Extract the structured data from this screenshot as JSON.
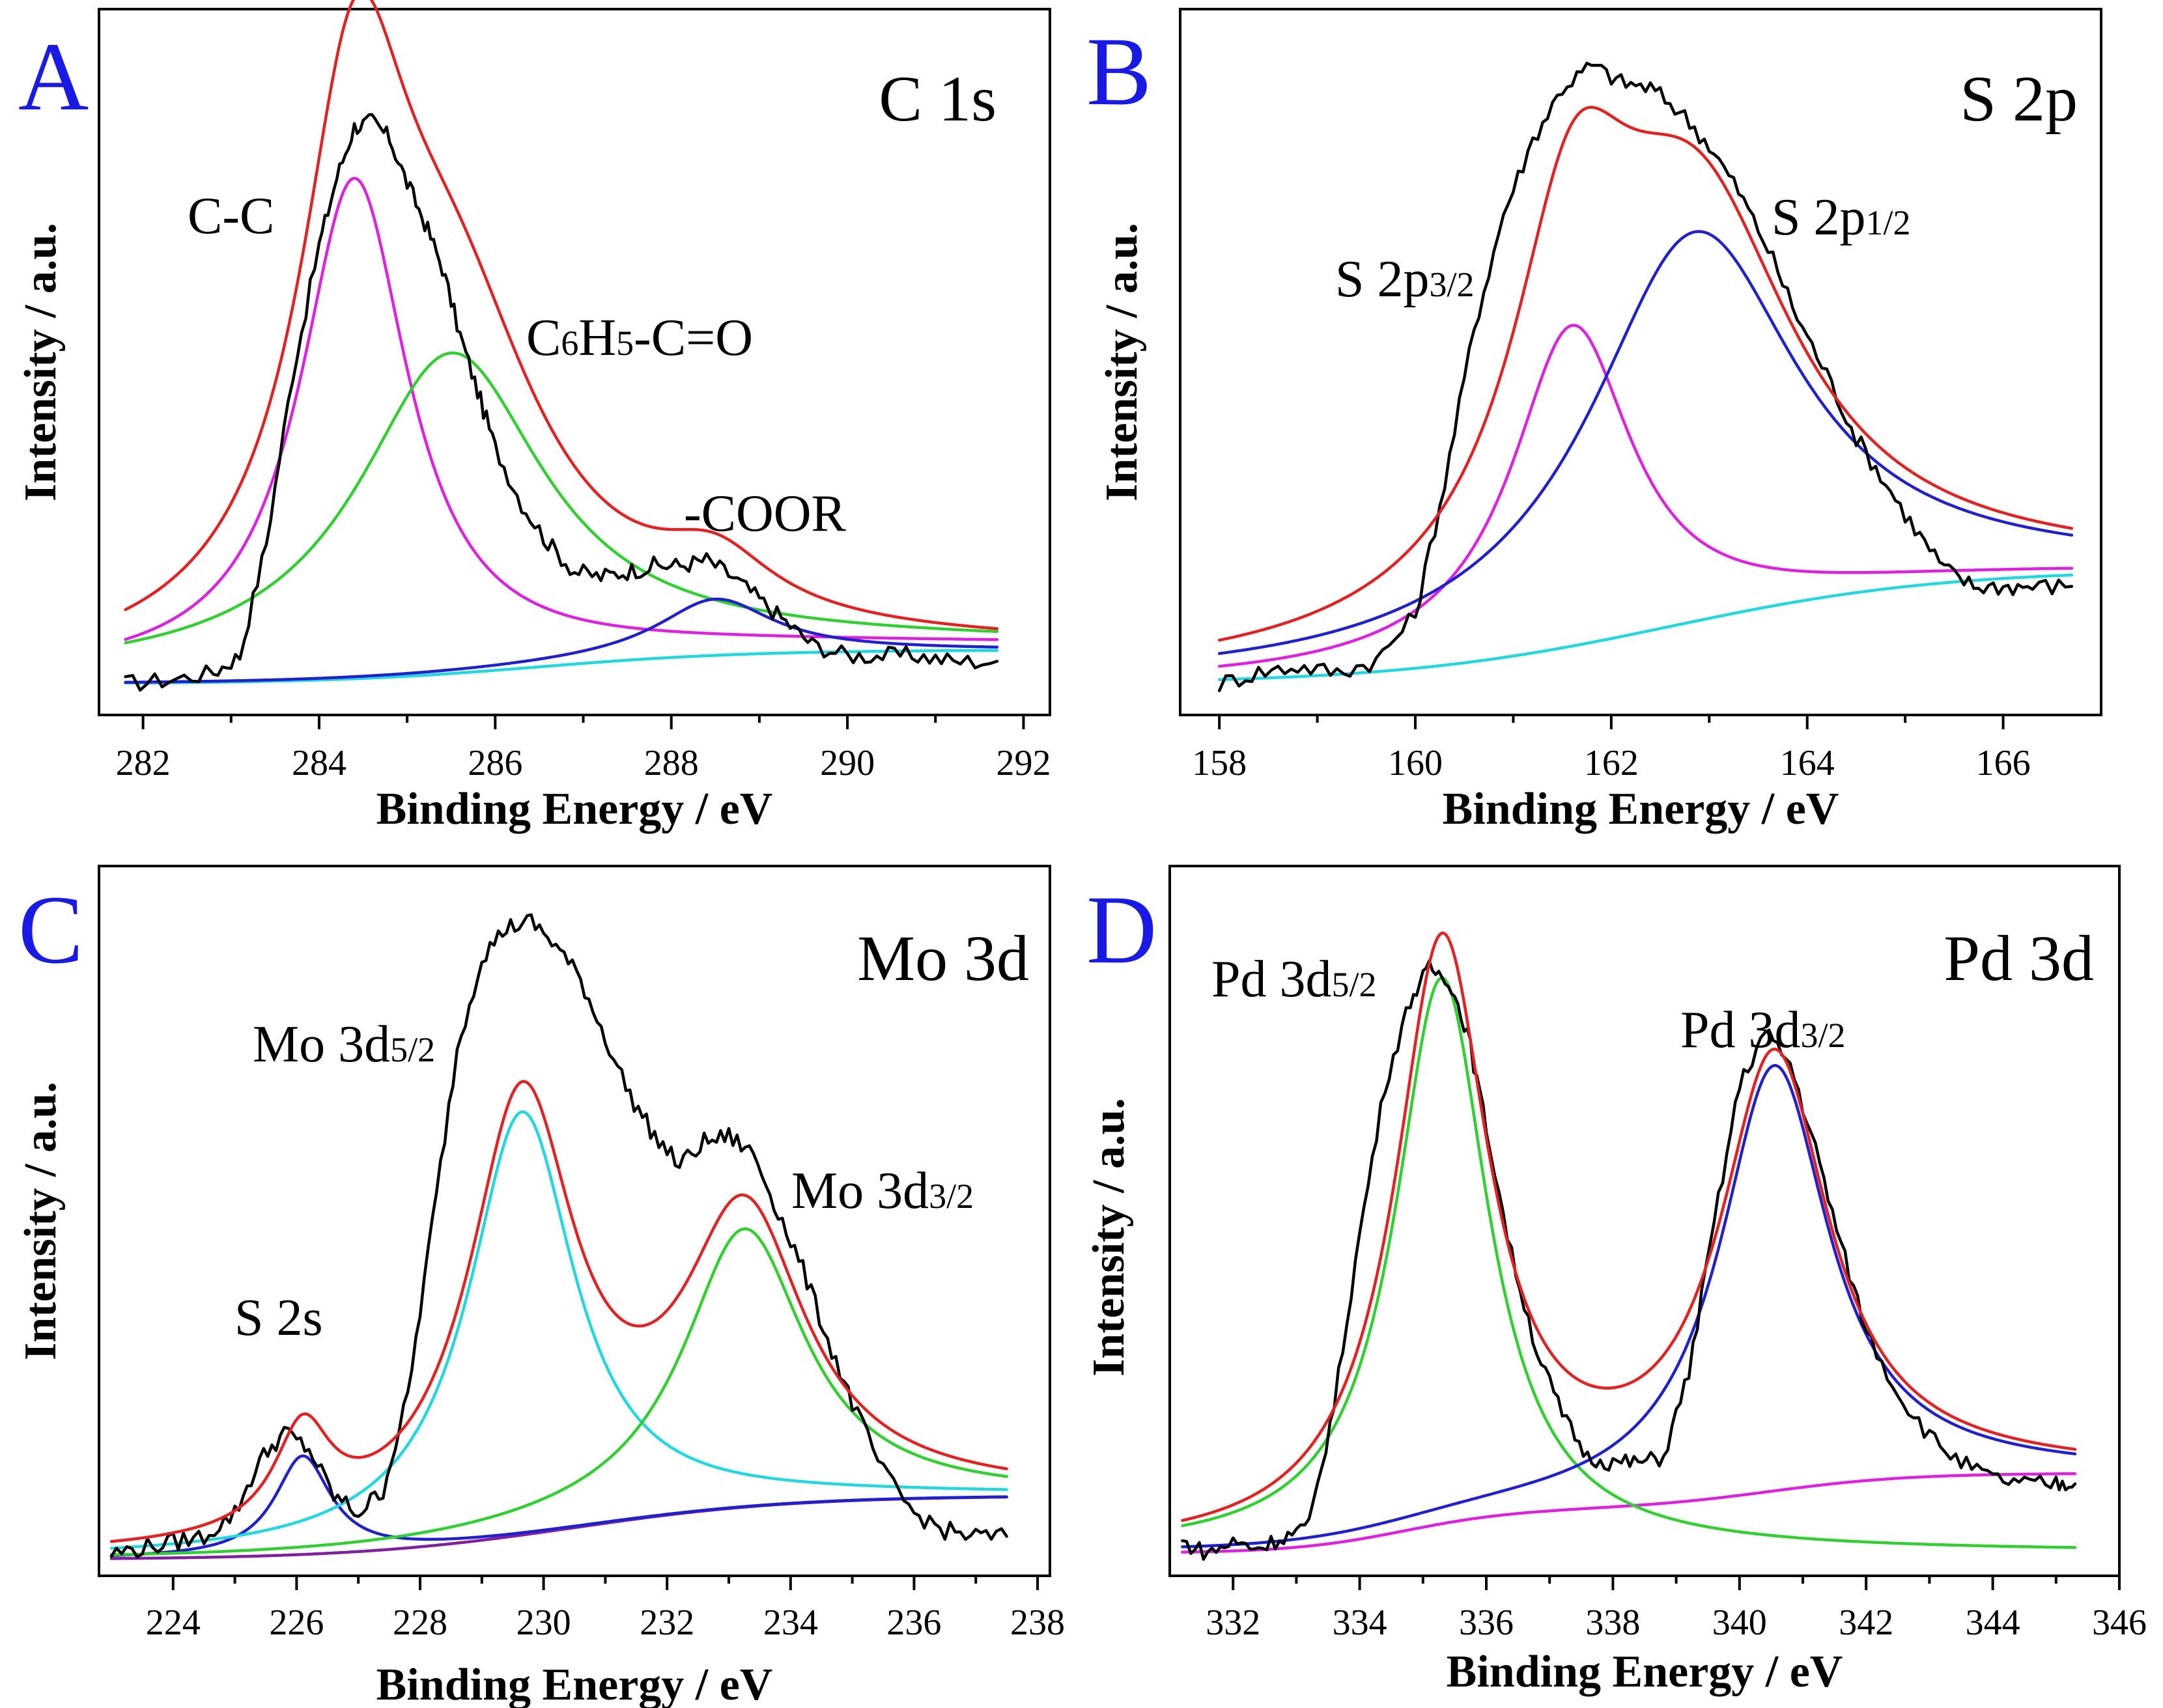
{
  "chart_data": [
    {
      "type": "line",
      "panel": "A",
      "title": "C 1s",
      "xlabel": "Binding Energy / eV",
      "ylabel": "Intensity / a.u.",
      "xlim": [
        281.5,
        292.3
      ],
      "ylim": [
        0,
        110
      ],
      "xticks": [
        282,
        284,
        286,
        288,
        290,
        292
      ],
      "annotations": [
        {
          "text": "C-C",
          "x": 283.0,
          "y": 82
        },
        {
          "text": "C6H5-C=O",
          "x": 286.3,
          "y": 58
        },
        {
          "text": "-COOR",
          "x": 287.8,
          "y": 26
        }
      ],
      "series": [
        {
          "name": "experimental",
          "color": "#000000",
          "shape": "data",
          "xs": [
            281.8,
            282.3,
            282.8,
            283.1,
            283.4,
            283.7,
            284.0,
            284.2,
            284.4,
            284.6,
            284.8,
            285.0,
            285.2,
            285.4,
            285.6,
            285.8,
            286.0,
            286.3,
            286.6,
            286.9,
            287.2,
            287.5,
            287.8,
            288.1,
            288.4,
            288.7,
            289.0,
            289.3,
            289.6,
            290.0,
            290.4,
            290.8,
            291.2,
            291.7
          ],
          "ys": [
            0,
            0.7,
            2,
            5,
            25,
            55,
            78,
            90,
            99,
            100,
            97,
            89,
            82,
            74,
            62,
            52,
            42,
            32,
            25,
            20,
            19,
            20,
            21,
            21,
            22,
            19,
            15,
            11,
            7,
            5,
            5,
            5,
            4,
            4
          ]
        },
        {
          "name": "envelope",
          "color": "#e62020",
          "shape": "sum",
          "base": "envelope"
        },
        {
          "name": "C-C",
          "color": "#e020e0",
          "shape": "peak",
          "center": 284.4,
          "height": 88,
          "width": 0.75,
          "base": "envelope"
        },
        {
          "name": "C6H5-C=O",
          "color": "#30d030",
          "shape": "peak",
          "center": 285.5,
          "height": 56,
          "width": 1.3,
          "base": "envelope"
        },
        {
          "name": "-COOR",
          "color": "#2020d0",
          "shape": "peak",
          "center": 288.5,
          "height": 10,
          "width": 0.8,
          "base": "shirley"
        },
        {
          "name": "background",
          "color": "#20d8e0",
          "shape": "background",
          "y0": 0,
          "y1": 6,
          "center": 286.5,
          "width": 1.2
        }
      ]
    },
    {
      "type": "line",
      "panel": "B",
      "title": "S 2p",
      "xlabel": "Binding Energy / eV",
      "ylabel": "Intensity / a.u.",
      "xlim": [
        157.6,
        167.0
      ],
      "ylim": [
        0,
        112
      ],
      "xticks": [
        158,
        160,
        162,
        164,
        166
      ],
      "annotations": [
        {
          "text": "S 2p3/2",
          "x": 159.6,
          "y": 71
        },
        {
          "text": "S 2p1/2",
          "x": 163.2,
          "y": 82
        }
      ],
      "series": [
        {
          "name": "experimental",
          "color": "#000000",
          "shape": "data",
          "xs": [
            158.0,
            158.4,
            158.8,
            159.2,
            159.6,
            160.0,
            160.3,
            160.6,
            160.9,
            161.2,
            161.5,
            161.8,
            162.1,
            162.4,
            162.7,
            163.0,
            163.3,
            163.6,
            163.9,
            164.2,
            164.5,
            164.8,
            165.1,
            165.4,
            165.7,
            166.0,
            166.3,
            166.7
          ],
          "ys": [
            0,
            2,
            3,
            2,
            4,
            12,
            35,
            62,
            82,
            95,
            104,
            108,
            105,
            104,
            100,
            94,
            86,
            76,
            64,
            54,
            43,
            35,
            27,
            20,
            17,
            17,
            17,
            17
          ]
        },
        {
          "name": "envelope",
          "color": "#e62020",
          "shape": "sum",
          "base": "background"
        },
        {
          "name": "S 2p3/2",
          "color": "#e020e0",
          "shape": "peak",
          "center": 161.6,
          "height": 56,
          "width": 0.75,
          "base": "background"
        },
        {
          "name": "S 2p1/2",
          "color": "#2020d0",
          "shape": "peak",
          "center": 162.85,
          "height": 68,
          "width": 1.3,
          "base": "background"
        },
        {
          "name": "background",
          "color": "#20d8e0",
          "shape": "background",
          "y0": 0,
          "y1": 20,
          "center": 162.6,
          "width": 1.4
        }
      ]
    },
    {
      "type": "line",
      "panel": "C",
      "title": "Mo 3d",
      "xlabel": "Binding Energy / eV",
      "ylabel": "Intensity / a.u.",
      "xlim": [
        222.8,
        238.2
      ],
      "ylim": [
        0,
        114
      ],
      "xticks": [
        224,
        226,
        228,
        230,
        232,
        234,
        236,
        238
      ],
      "annotations": [
        {
          "text": "S 2s",
          "x": 224.2,
          "y": 40
        },
        {
          "text": "Mo 3d5/2",
          "x": 225.0,
          "y": 90
        },
        {
          "text": "Mo 3d3/2",
          "x": 233.6,
          "y": 65
        }
      ],
      "series": [
        {
          "name": "experimental",
          "color": "#000000",
          "shape": "data",
          "xs": [
            223.0,
            223.5,
            224.0,
            224.5,
            225.0,
            225.4,
            225.8,
            226.2,
            226.6,
            227.0,
            227.4,
            227.8,
            228.2,
            228.6,
            229.0,
            229.4,
            229.8,
            230.2,
            230.6,
            231.0,
            231.4,
            231.8,
            232.2,
            232.6,
            233.0,
            233.4,
            233.8,
            234.2,
            234.6,
            235.0,
            235.5,
            236.0,
            236.5,
            237.0,
            237.5
          ],
          "ys": [
            1,
            2,
            3,
            4,
            8,
            17,
            22,
            19,
            11,
            8,
            12,
            28,
            58,
            88,
            104,
            109,
            110,
            106,
            100,
            90,
            80,
            73,
            68,
            72,
            73,
            70,
            60,
            50,
            38,
            27,
            15,
            8,
            5,
            4,
            4
          ]
        },
        {
          "name": "envelope",
          "color": "#e62020",
          "shape": "sum",
          "base": "background"
        },
        {
          "name": "S 2s",
          "color": "#2020d0",
          "shape": "peak",
          "center": 226.1,
          "height": 17,
          "width": 0.55,
          "base": "background"
        },
        {
          "name": "Mo 3d5/2",
          "color": "#20d8e0",
          "shape": "peak",
          "center": 229.65,
          "height": 73,
          "width": 1.05,
          "base": "bg-pedestal"
        },
        {
          "name": "Mo 3d3/2",
          "color": "#30d030",
          "shape": "peak",
          "center": 233.25,
          "height": 48,
          "width": 1.2,
          "base": "background"
        },
        {
          "name": "background",
          "color": "#8020a0",
          "shape": "background",
          "y0": 0,
          "y1": 11,
          "center": 230.5,
          "width": 1.8
        }
      ]
    },
    {
      "type": "line",
      "panel": "D",
      "title": "Pd 3d",
      "xlabel": "Binding Energy / eV",
      "ylabel": "Intensity / a.u.",
      "xlim": [
        331.0,
        346.0
      ],
      "ylim": [
        0,
        120
      ],
      "xticks": [
        332,
        334,
        336,
        338,
        340,
        342,
        344,
        346
      ],
      "annotations": [
        {
          "text": "Pd 3d5/2",
          "x": 331.2,
          "y": 103
        },
        {
          "text": "Pd 3d3/2",
          "x": 338.0,
          "y": 92
        }
      ],
      "series": [
        {
          "name": "experimental",
          "color": "#000000",
          "shape": "data",
          "xs": [
            331.2,
            331.6,
            332.0,
            332.4,
            332.8,
            333.2,
            333.6,
            334.0,
            334.4,
            334.8,
            335.1,
            335.4,
            335.7,
            336.0,
            336.4,
            336.8,
            337.2,
            337.6,
            338.0,
            338.4,
            338.8,
            339.2,
            339.6,
            340.0,
            340.4,
            340.8,
            341.2,
            341.6,
            342.0,
            342.5,
            343.0,
            343.5,
            344.0,
            344.5,
            345.0,
            345.3
          ],
          "ys": [
            2,
            0,
            2,
            1,
            3,
            5,
            28,
            60,
            88,
            104,
            110,
            108,
            98,
            80,
            56,
            38,
            26,
            18,
            17,
            17,
            18,
            34,
            62,
            88,
            98,
            92,
            76,
            58,
            42,
            30,
            22,
            17,
            14,
            13,
            13,
            13
          ]
        },
        {
          "name": "envelope",
          "color": "#e62020",
          "shape": "sum",
          "base": "background"
        },
        {
          "name": "Pd 3d5/2",
          "color": "#30d030",
          "shape": "peak",
          "center": 335.3,
          "height": 108,
          "width": 0.9,
          "base": "zero"
        },
        {
          "name": "Pd 3d3/2",
          "color": "#2020d0",
          "shape": "peak",
          "center": 340.55,
          "height": 80,
          "width": 1.05,
          "base": "background"
        },
        {
          "name": "background",
          "color": "#e020e0",
          "shape": "background-two-step",
          "y0": 0,
          "y1": 15,
          "steps": [
            [
              334.7,
              0.9,
              0.55
            ],
            [
              340.5,
              1.1,
              0.45
            ]
          ]
        }
      ]
    }
  ]
}
